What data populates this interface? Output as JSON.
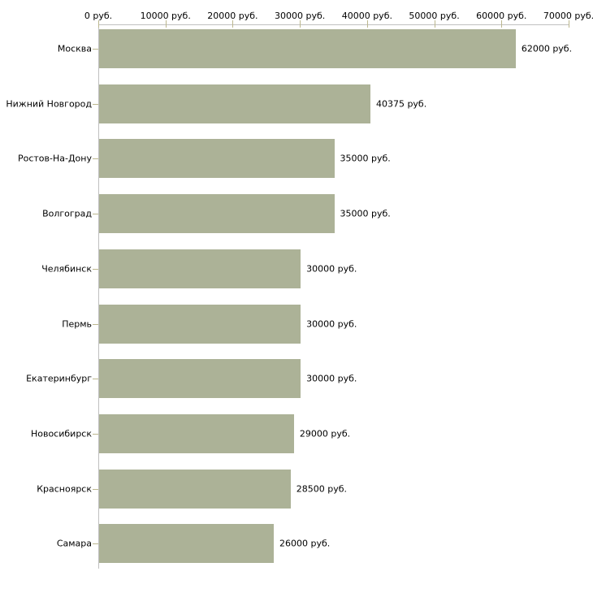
{
  "chart_data": {
    "type": "bar",
    "orientation": "horizontal",
    "title": "",
    "xlabel": "",
    "ylabel": "",
    "xlim": [
      0,
      70000
    ],
    "unit": "руб.",
    "grid": "off",
    "legend": "none",
    "categories": [
      "Москва",
      "Нижний Новгород",
      "Ростов-На-Дону",
      "Волгоград",
      "Челябинск",
      "Пермь",
      "Екатеринбург",
      "Новосибирск",
      "Красноярск",
      "Самара"
    ],
    "values": [
      62000,
      40375,
      35000,
      35000,
      30000,
      30000,
      30000,
      29000,
      28500,
      26000
    ],
    "value_labels": [
      "62000 руб.",
      "40375 руб.",
      "35000 руб.",
      "35000 руб.",
      "30000 руб.",
      "30000 руб.",
      "30000 руб.",
      "29000 руб.",
      "28500 руб.",
      "26000 руб."
    ],
    "x_axis": {
      "tick_values": [
        0,
        10000,
        20000,
        30000,
        40000,
        50000,
        60000,
        70000
      ],
      "tick_labels": [
        "0 руб.",
        "10000 руб.",
        "20000 руб.",
        "30000 руб.",
        "40000 руб.",
        "50000 руб.",
        "60000 руб.",
        "70000 руб."
      ]
    },
    "colors": {
      "bar": "#acb297",
      "axis_line": "#c0c0c0",
      "tick_mark": "#bcb78e",
      "text": "#000000",
      "background": "#ffffff"
    }
  }
}
